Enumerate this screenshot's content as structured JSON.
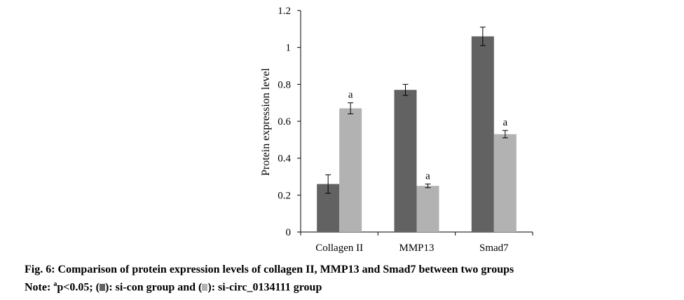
{
  "chart_data": {
    "type": "bar",
    "title": "",
    "xlabel": "",
    "ylabel": "Protein expression level",
    "ylim": [
      0,
      1.2
    ],
    "yticks": [
      "0",
      "0.2",
      "0.4",
      "0.6",
      "0.8",
      "1",
      "1.2"
    ],
    "categories": [
      "Collagen II",
      "MMP13",
      "Smad7"
    ],
    "series": [
      {
        "color": "#626262",
        "values": [
          0.26,
          0.77,
          1.06
        ],
        "errors": [
          0.05,
          0.03,
          0.05
        ],
        "labels": [
          "",
          "",
          ""
        ]
      },
      {
        "color": "#b2b2b2",
        "values": [
          0.67,
          0.25,
          0.53
        ],
        "errors": [
          0.03,
          0.01,
          0.02
        ],
        "labels": [
          "a",
          "a",
          "a"
        ]
      }
    ],
    "grid": false,
    "legend": "none"
  },
  "caption": {
    "title": "Fig. 6: Comparison of protein expression levels of collagen II, MMP13 and Smad7 between two groups",
    "note_prefix": "Note: ",
    "note_sup": "a",
    "note_p": "p<0.05; (",
    "note_mid": "): si-con group and (",
    "note_end": "): si-circ_0134111 group"
  }
}
